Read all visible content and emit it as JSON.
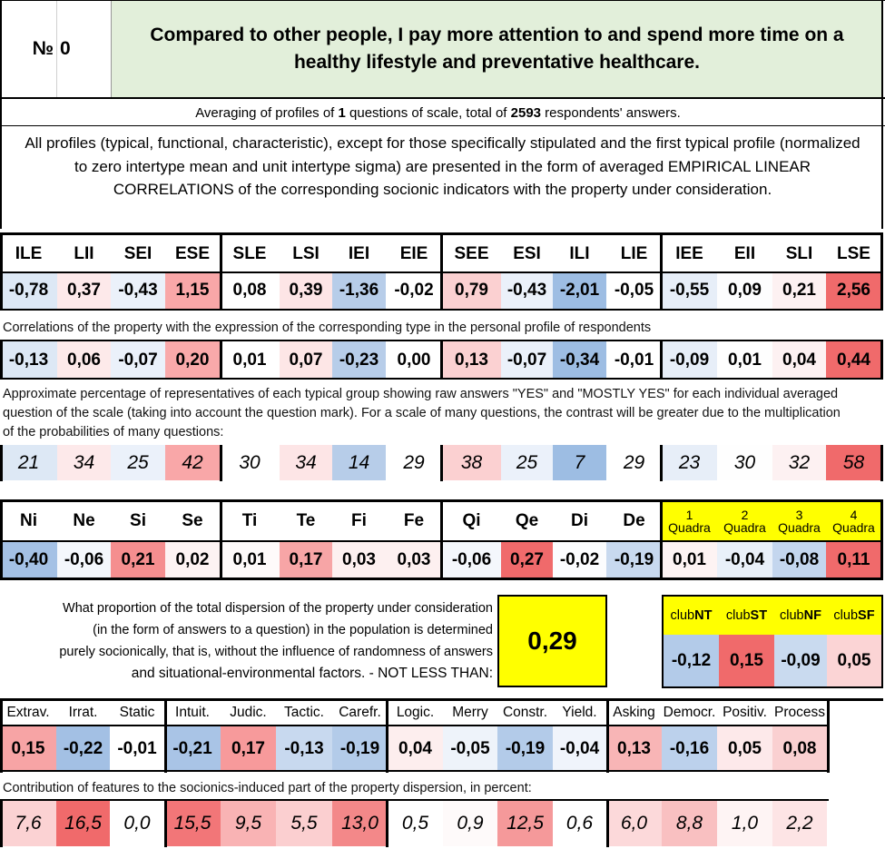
{
  "header": {
    "num_label": "№",
    "num_value": "0",
    "question": "Compared to other people, I pay more attention to and spend more time on a healthy lifestyle and preventative healthcare."
  },
  "summary": {
    "prefix": "Averaging of profiles of ",
    "questions": "1",
    "middle": " questions of scale, total of ",
    "respondents": "2593",
    "suffix": " respondents' answers."
  },
  "description": "All profiles (typical, functional, characteristic), except for those specifically stipulated and the first typical profile (normalized to zero intertype mean and unit intertype sigma) are presented in the form of averaged EMPIRICAL LINEAR CORRELATIONS of the corresponding socionic indicators with the property under consideration.",
  "types": {
    "headers": [
      "ILE",
      "LII",
      "SEI",
      "ESE",
      "SLE",
      "LSI",
      "IEI",
      "EIE",
      "SEE",
      "ESI",
      "ILI",
      "LIE",
      "IEE",
      "EII",
      "SLI",
      "LSE"
    ],
    "profile": [
      "-0,78",
      "0,37",
      "-0,43",
      "1,15",
      "0,08",
      "0,39",
      "-1,36",
      "-0,02",
      "0,79",
      "-0,43",
      "-2,01",
      "-0,05",
      "-0,55",
      "0,09",
      "0,21",
      "2,56"
    ],
    "profile_colors": [
      "#dde8f5",
      "#fde9ea",
      "#ebf1fa",
      "#f9a7a8",
      "#ffffff",
      "#fde5e6",
      "#b7cde9",
      "#ffffff",
      "#fbd0d1",
      "#ebf1fa",
      "#9dbde3",
      "#ffffff",
      "#e7eef8",
      "#fdfdfe",
      "#fdf1f2",
      "#f06a6b"
    ],
    "correlation_note": "Correlations of the property with the expression of the corresponding type in the personal profile of respondents",
    "correlations": [
      "-0,13",
      "0,06",
      "-0,07",
      "0,20",
      "0,01",
      "0,07",
      "-0,23",
      "0,00",
      "0,13",
      "-0,07",
      "-0,34",
      "-0,01",
      "-0,09",
      "0,01",
      "0,04",
      "0,44"
    ],
    "correlation_colors": [
      "#dde8f5",
      "#fdeaea",
      "#ebf1fa",
      "#f9a9aa",
      "#ffffff",
      "#fde6e6",
      "#b7cde9",
      "#ffffff",
      "#fbd1d2",
      "#ebf1fa",
      "#9dbde3",
      "#ffffff",
      "#e7eef8",
      "#fefefe",
      "#fdf1f2",
      "#f06a6b"
    ],
    "percentage_note": "Approximate percentage of representatives of each typical group showing raw answers \"YES\" and \"MOSTLY YES\" for each individual averaged question of the scale (taking into account the question mark). For a scale of many questions, the contrast will be greater due to the multiplication of the probabilities of many questions:",
    "percentages": [
      "21",
      "34",
      "25",
      "42",
      "30",
      "34",
      "14",
      "29",
      "38",
      "25",
      "7",
      "29",
      "23",
      "30",
      "32",
      "58"
    ],
    "percentage_colors": [
      "#dde8f5",
      "#fde9ea",
      "#ebf1fa",
      "#f9a7a8",
      "#ffffff",
      "#fde5e6",
      "#b7cde9",
      "#ffffff",
      "#fbd0d1",
      "#ebf1fa",
      "#9dbde3",
      "#ffffff",
      "#e7eef8",
      "#fefefe",
      "#fdf1f2",
      "#f06a6b"
    ]
  },
  "functions": {
    "headers": [
      "Ni",
      "Ne",
      "Si",
      "Se",
      "Ti",
      "Te",
      "Fi",
      "Fe",
      "Qi",
      "Qe",
      "Di",
      "De"
    ],
    "values": [
      "-0,40",
      "-0,06",
      "0,21",
      "0,02",
      "0,01",
      "0,17",
      "0,03",
      "0,03",
      "-0,06",
      "0,27",
      "-0,02",
      "-0,19"
    ],
    "colors": [
      "#a4c1e5",
      "#f4f7fc",
      "#f58e8f",
      "#fdf3f3",
      "#fefafa",
      "#f7a5a6",
      "#fdf0f0",
      "#fdf0f0",
      "#f4f7fc",
      "#f06a6b",
      "#fbfcfe",
      "#c8d9ef"
    ],
    "quadra": [
      {
        "num": "1",
        "label": "Quadra",
        "value": "0,01",
        "color": "#fdf3f3"
      },
      {
        "num": "2",
        "label": "Quadra",
        "value": "-0,04",
        "color": "#e9f0f9"
      },
      {
        "num": "3",
        "label": "Quadra",
        "value": "-0,08",
        "color": "#c4d6ee"
      },
      {
        "num": "4",
        "label": "Quadra",
        "value": "0,11",
        "color": "#f06a6b"
      }
    ]
  },
  "dispersion": {
    "text_lines": [
      "What proportion of the total dispersion of the property under consideration",
      "(in the form of answers to a question) in the population is determined",
      "purely socionically, that is, without the influence of randomness of answers",
      "and situational-environmental factors. - NOT LESS THAN:"
    ],
    "value": "0,29"
  },
  "clubs": [
    {
      "prefix": "club",
      "code": "NT",
      "value": "-0,12",
      "color": "#b3cbe9"
    },
    {
      "prefix": "club",
      "code": "ST",
      "value": "0,15",
      "color": "#f06a6b"
    },
    {
      "prefix": "club",
      "code": "NF",
      "value": "-0,09",
      "color": "#c9daef"
    },
    {
      "prefix": "club",
      "code": "SF",
      "value": "0,05",
      "color": "#fbd4d5"
    }
  ],
  "traits": {
    "headers": [
      "Extrav.",
      "Irrat.",
      "Static",
      "Intuit.",
      "Judic.",
      "Tactic.",
      "Carefr.",
      "Logic.",
      "Merry",
      "Constr.",
      "Yield.",
      "Asking",
      "Democr.",
      "Positiv.",
      "Process"
    ],
    "values": [
      "0,15",
      "-0,22",
      "-0,01",
      "-0,21",
      "0,17",
      "-0,13",
      "-0,19",
      "0,04",
      "-0,05",
      "-0,19",
      "-0,04",
      "0,13",
      "-0,16",
      "0,05",
      "0,08"
    ],
    "colors": [
      "#f7a4a5",
      "#a3c0e4",
      "#ffffff",
      "#a9c4e6",
      "#f79a9b",
      "#c8d9ef",
      "#b3cbe9",
      "#fdeeee",
      "#eef3fa",
      "#b3cbe9",
      "#f0f4fb",
      "#f8b5b6",
      "#bcd1ec",
      "#fde9ea",
      "#fad0d1"
    ],
    "contribution_note": "Contribution of features to the socionics-induced part of the property dispersion, in percent:",
    "contributions": [
      "7,6",
      "16,5",
      "0,0",
      "15,5",
      "9,5",
      "5,5",
      "13,0",
      "0,5",
      "0,9",
      "12,5",
      "0,6",
      "6,0",
      "8,8",
      "1,0",
      "2,2"
    ],
    "contribution_colors": [
      "#fbd2d3",
      "#f06a6b",
      "#ffffff",
      "#f27678",
      "#f9b3b4",
      "#fbcfd0",
      "#f38889",
      "#ffffff",
      "#fefafa",
      "#f5999a",
      "#ffffff",
      "#fcd9da",
      "#f9c0c1",
      "#fef4f4",
      "#fde4e5"
    ]
  },
  "colors": {
    "header_green": "#e2efda",
    "highlight_yellow": "#ffff00",
    "strong_red": "#f06a6b",
    "strong_blue": "#9dbde3"
  }
}
